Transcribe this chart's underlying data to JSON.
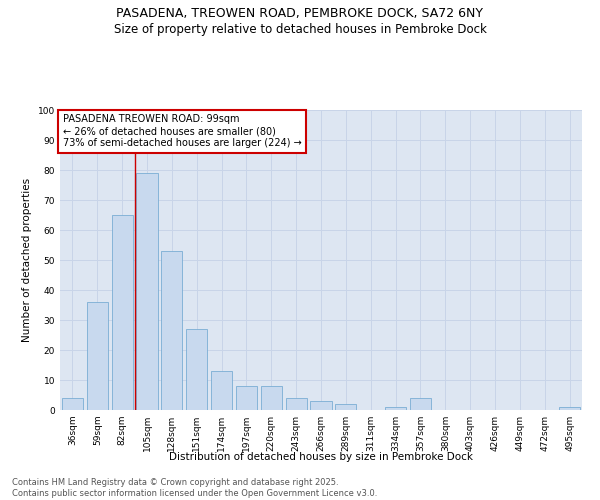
{
  "title1": "PASADENA, TREOWEN ROAD, PEMBROKE DOCK, SA72 6NY",
  "title2": "Size of property relative to detached houses in Pembroke Dock",
  "xlabel": "Distribution of detached houses by size in Pembroke Dock",
  "ylabel": "Number of detached properties",
  "categories": [
    "36sqm",
    "59sqm",
    "82sqm",
    "105sqm",
    "128sqm",
    "151sqm",
    "174sqm",
    "197sqm",
    "220sqm",
    "243sqm",
    "266sqm",
    "289sqm",
    "311sqm",
    "334sqm",
    "357sqm",
    "380sqm",
    "403sqm",
    "426sqm",
    "449sqm",
    "472sqm",
    "495sqm"
  ],
  "values": [
    4,
    36,
    65,
    79,
    53,
    27,
    13,
    8,
    8,
    4,
    3,
    2,
    0,
    1,
    4,
    0,
    0,
    0,
    0,
    0,
    1
  ],
  "bar_color": "#c8d9ee",
  "bar_edge_color": "#7aadd4",
  "bar_edge_width": 0.6,
  "vline_x_index": 3,
  "vline_color": "#cc0000",
  "annotation_title": "PASADENA TREOWEN ROAD: 99sqm",
  "annotation_line1": "← 26% of detached houses are smaller (80)",
  "annotation_line2": "73% of semi-detached houses are larger (224) →",
  "annotation_box_color": "#cc0000",
  "annotation_bg": "#ffffff",
  "ylim": [
    0,
    100
  ],
  "yticks": [
    0,
    10,
    20,
    30,
    40,
    50,
    60,
    70,
    80,
    90,
    100
  ],
  "grid_color": "#c8d4e8",
  "bg_color": "#dde6f2",
  "footer1": "Contains HM Land Registry data © Crown copyright and database right 2025.",
  "footer2": "Contains public sector information licensed under the Open Government Licence v3.0.",
  "title_fontsize": 9,
  "subtitle_fontsize": 8.5,
  "axis_label_fontsize": 7.5,
  "tick_fontsize": 6.5,
  "annotation_fontsize": 7,
  "footer_fontsize": 6
}
